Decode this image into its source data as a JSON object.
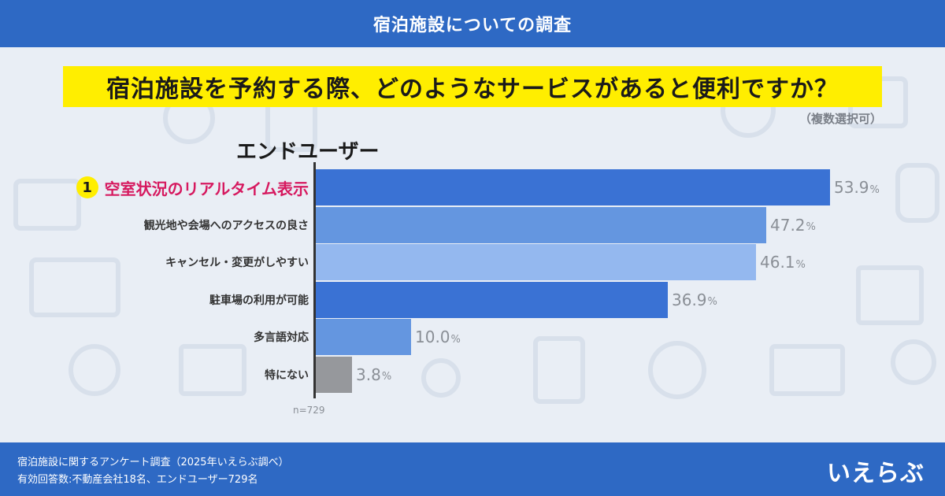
{
  "header": {
    "title": "宿泊施設についての調査"
  },
  "question": {
    "text": "宿泊施設を予約する際、どのようなサービスがあると便利ですか？",
    "note": "（複数選択可）"
  },
  "chart_data": {
    "type": "bar",
    "orientation": "horizontal",
    "group_label": "エンドユーザー",
    "categories": [
      "空室状況のリアルタイム表示",
      "観光地や会場へのアクセスの良さ",
      "キャンセル・変更がしやすい",
      "駐車場の利用が可能",
      "多言語対応",
      "特にない"
    ],
    "values": [
      53.9,
      47.2,
      46.1,
      36.9,
      10.0,
      3.8
    ],
    "value_labels": [
      "53.9",
      "47.2",
      "46.1",
      "36.9",
      "10.0",
      "3.8"
    ],
    "unit": "%",
    "rank_badge": "1",
    "bar_colors": [
      "#3a72d4",
      "#6496e0",
      "#94b8ef",
      "#3a72d4",
      "#6496e0",
      "#96989c"
    ],
    "highlight_color": "#d6195f",
    "sample_size": "n=729",
    "xlim": [
      0,
      53.9
    ]
  },
  "footer": {
    "line1": "宿泊施設に関するアンケート調査（2025年いえらぶ調べ）",
    "line2": "有効回答数:不動産会社18名、エンドユーザー729名",
    "logo": "いえらぶ"
  }
}
